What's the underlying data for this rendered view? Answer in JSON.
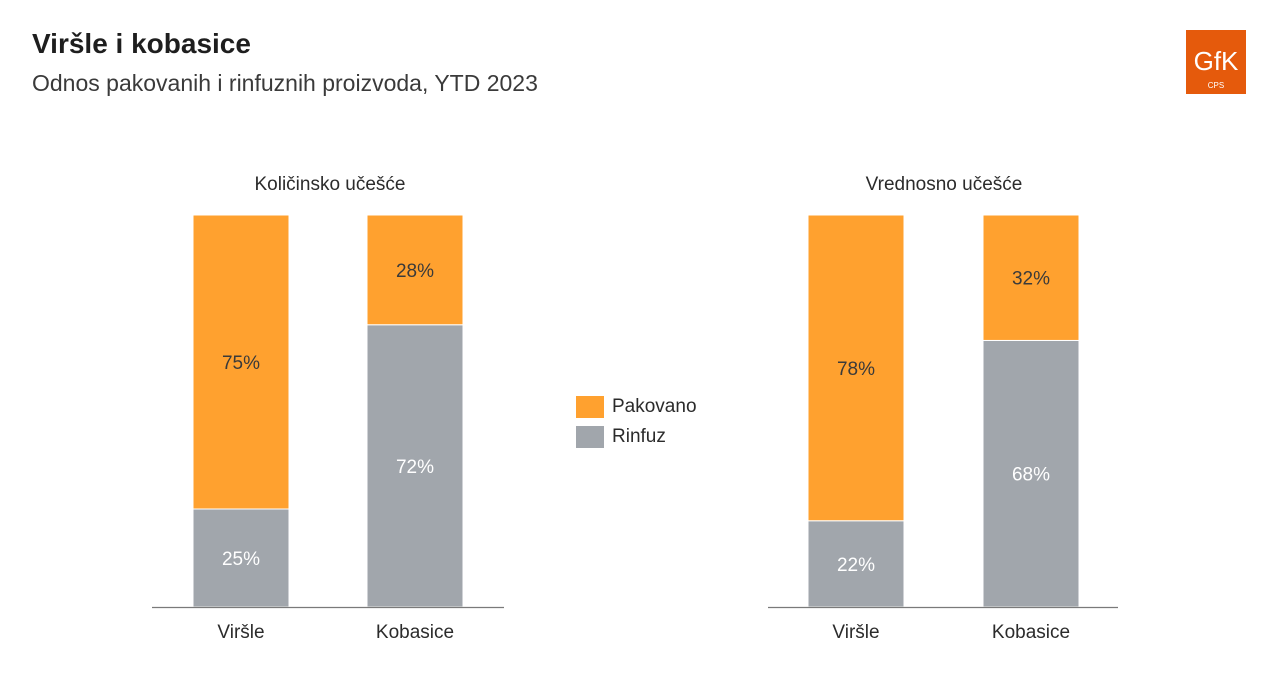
{
  "header": {
    "title": "Viršle i kobasice",
    "subtitle": "Odnos pakovanih i rinfuznih proizvoda, YTD 2023"
  },
  "logo": {
    "text": "GfK",
    "subtext": "CPS",
    "color": "#E55A0C"
  },
  "colors": {
    "pakovano": "#FFA12F",
    "rinfuz": "#A1A6AC",
    "axis": "#7a7a7a"
  },
  "legend": [
    {
      "label": "Pakovano",
      "color": "#FFA12F"
    },
    {
      "label": "Rinfuz",
      "color": "#A1A6AC"
    }
  ],
  "chart_data": [
    {
      "type": "bar",
      "stacked": true,
      "title": "Količinsko učešće",
      "categories": [
        "Viršle",
        "Kobasice"
      ],
      "series": [
        {
          "name": "Rinfuz",
          "values": [
            25,
            72
          ],
          "labels": [
            "25%",
            "72%"
          ]
        },
        {
          "name": "Pakovano",
          "values": [
            75,
            28
          ],
          "labels": [
            "75%",
            "28%"
          ]
        }
      ],
      "ylim": [
        0,
        100
      ]
    },
    {
      "type": "bar",
      "stacked": true,
      "title": "Vrednosno učešće",
      "categories": [
        "Viršle",
        "Kobasice"
      ],
      "series": [
        {
          "name": "Rinfuz",
          "values": [
            22,
            68
          ],
          "labels": [
            "22%",
            "68%"
          ]
        },
        {
          "name": "Pakovano",
          "values": [
            78,
            32
          ],
          "labels": [
            "78%",
            "32%"
          ]
        }
      ],
      "ylim": [
        0,
        100
      ]
    }
  ]
}
